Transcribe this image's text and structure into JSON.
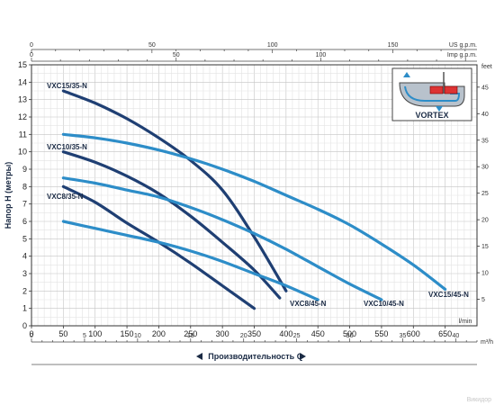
{
  "chart_data": {
    "type": "line",
    "ylabel": "Напор H (метры)",
    "xlabel": "Производительность Q",
    "x_primary": {
      "unit": "l/min",
      "range": [
        0,
        700
      ],
      "ticks": [
        0,
        50,
        100,
        150,
        200,
        250,
        300,
        350,
        400,
        450,
        500,
        550,
        600,
        650
      ]
    },
    "x_m3h": {
      "unit": "m³/h",
      "ticks": [
        0,
        5,
        10,
        15,
        20,
        25,
        30,
        35,
        40
      ]
    },
    "x_usgpm": {
      "unit": "US g.p.m.",
      "ticks": [
        0,
        50,
        100,
        150
      ]
    },
    "x_impgpm": {
      "unit": "Imp g.p.m.",
      "ticks": [
        0,
        50,
        100
      ]
    },
    "y_primary": {
      "range": [
        0,
        15
      ],
      "ticks": [
        0,
        1,
        2,
        3,
        4,
        5,
        6,
        7,
        8,
        9,
        10,
        11,
        12,
        13,
        14,
        15
      ]
    },
    "y_feet": {
      "unit": "feet",
      "ticks": [
        5,
        10,
        15,
        20,
        25,
        30,
        35,
        40,
        45
      ]
    },
    "grid": true,
    "colors": {
      "dark": "#1f3f73",
      "light": "#2d8dc8"
    },
    "series": [
      {
        "name": "VXC15/35-N",
        "color": "#1f3f73",
        "x": [
          50,
          100,
          150,
          200,
          250,
          300,
          350,
          400
        ],
        "y": [
          13.5,
          12.8,
          11.9,
          10.8,
          9.5,
          7.8,
          5.1,
          2.0
        ]
      },
      {
        "name": "VXC10/35-N",
        "color": "#1f3f73",
        "x": [
          50,
          100,
          150,
          200,
          250,
          300,
          350,
          390
        ],
        "y": [
          10.0,
          9.4,
          8.6,
          7.6,
          6.3,
          4.8,
          3.2,
          1.6
        ]
      },
      {
        "name": "VXC8/35-N",
        "color": "#1f3f73",
        "x": [
          50,
          100,
          150,
          200,
          250,
          300,
          350
        ],
        "y": [
          8.0,
          7.1,
          5.9,
          4.8,
          3.6,
          2.3,
          1.0
        ]
      },
      {
        "name": "VXC15/45-N",
        "color": "#2d8dc8",
        "x": [
          50,
          100,
          150,
          200,
          250,
          300,
          350,
          400,
          450,
          500,
          550,
          600,
          650
        ],
        "y": [
          11.0,
          10.8,
          10.5,
          10.1,
          9.6,
          9.0,
          8.3,
          7.5,
          6.7,
          5.8,
          4.7,
          3.5,
          2.1
        ]
      },
      {
        "name": "VXC10/45-N",
        "color": "#2d8dc8",
        "x": [
          50,
          100,
          150,
          200,
          250,
          300,
          350,
          400,
          450,
          500,
          550
        ],
        "y": [
          8.5,
          8.2,
          7.8,
          7.4,
          6.8,
          6.1,
          5.3,
          4.4,
          3.4,
          2.4,
          1.5
        ]
      },
      {
        "name": "VXC8/45-N",
        "color": "#2d8dc8",
        "x": [
          50,
          100,
          150,
          200,
          250,
          300,
          350,
          400,
          450
        ],
        "y": [
          6.0,
          5.6,
          5.2,
          4.8,
          4.3,
          3.7,
          3.0,
          2.3,
          1.5
        ]
      }
    ],
    "inset_label": "VORTEX"
  },
  "watermark": "Викидор"
}
